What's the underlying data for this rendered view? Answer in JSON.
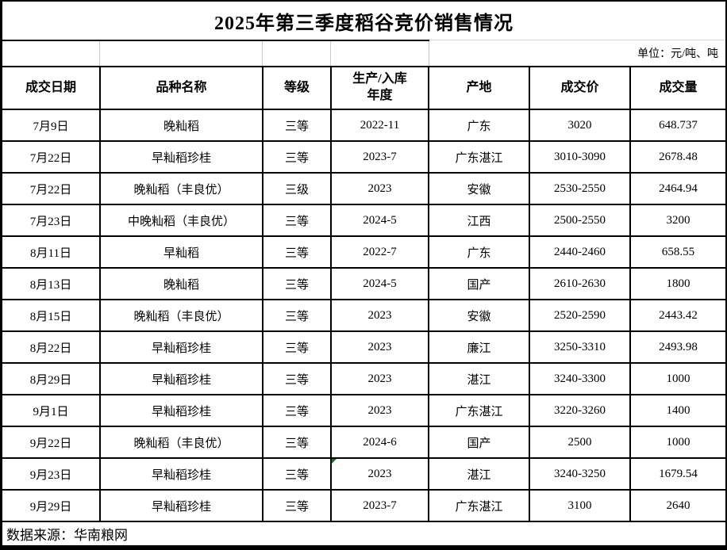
{
  "title": "2025年第三季度稻谷竞价销售情况",
  "unit_note": "单位：元/吨、吨",
  "source_note": "数据来源：华南粮网",
  "table": {
    "headers": [
      "成交日期",
      "品种名称",
      "等级",
      "生产/入库\n年度",
      "产地",
      "成交价",
      "成交量"
    ],
    "rows": [
      [
        "7月9日",
        "晚籼稻",
        "三等",
        "2022-11",
        "广东",
        "3020",
        "648.737"
      ],
      [
        "7月22日",
        "早籼稻珍桂",
        "三等",
        "2023-7",
        "广东湛江",
        "3010-3090",
        "2678.48"
      ],
      [
        "7月22日",
        "晚籼稻（丰良优）",
        "三级",
        "2023",
        "安徽",
        "2530-2550",
        "2464.94"
      ],
      [
        "7月23日",
        "中晚籼稻（丰良优）",
        "三等",
        "2024-5",
        "江西",
        "2500-2550",
        "3200"
      ],
      [
        "8月11日",
        "早籼稻",
        "三等",
        "2022-7",
        "广东",
        "2440-2460",
        "658.55"
      ],
      [
        "8月13日",
        "晚籼稻",
        "三等",
        "2024-5",
        "国产",
        "2610-2630",
        "1800"
      ],
      [
        "8月15日",
        "晚籼稻（丰良优）",
        "三等",
        "2023",
        "安徽",
        "2520-2590",
        "2443.42"
      ],
      [
        "8月22日",
        "早籼稻珍桂",
        "三等",
        "2023",
        "廉江",
        "3250-3310",
        "2493.98"
      ],
      [
        "8月29日",
        "早籼稻珍桂",
        "三等",
        "2023",
        "湛江",
        "3240-3300",
        "1000"
      ],
      [
        "9月1日",
        "早籼稻珍桂",
        "三等",
        "2023",
        "广东湛江",
        "3220-3260",
        "1400"
      ],
      [
        "9月22日",
        "晚籼稻（丰良优）",
        "三等",
        "2024-6",
        "国产",
        "2500",
        "1000"
      ],
      [
        "9月23日",
        "早籼稻珍桂",
        "三等",
        "2023",
        "湛江",
        "3240-3250",
        "1679.54"
      ],
      [
        "9月29日",
        "早籼稻珍桂",
        "三等",
        "2023-7",
        "广东湛江",
        "3100",
        "2640"
      ]
    ],
    "marker": {
      "row": 11,
      "col": 3,
      "color": "#107c10"
    }
  }
}
